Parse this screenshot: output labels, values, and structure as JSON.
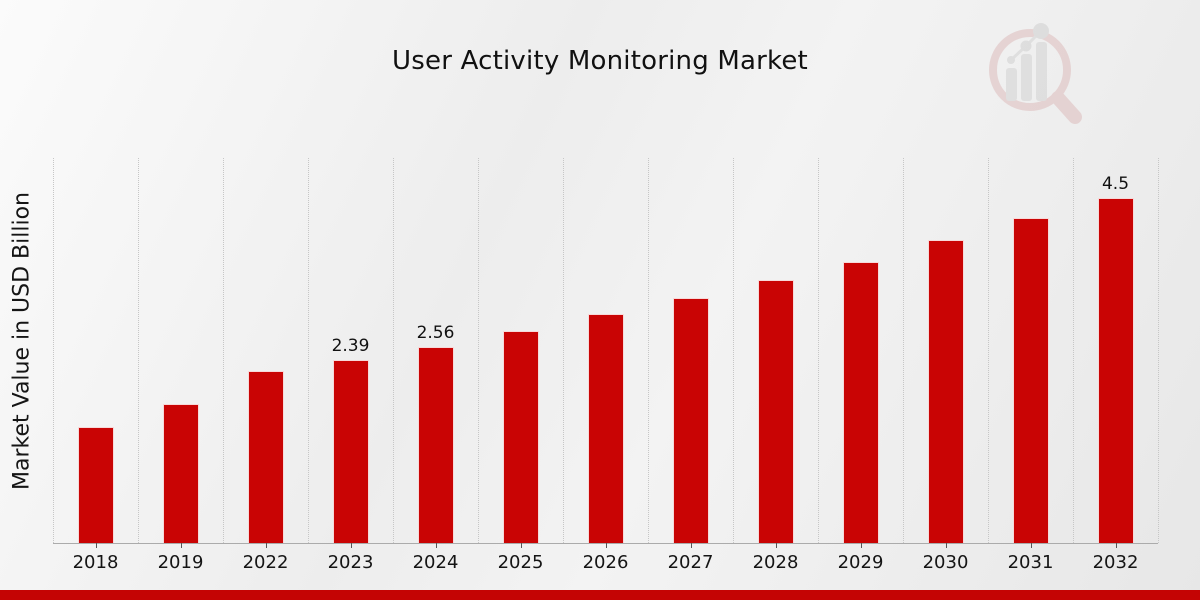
{
  "page": {
    "title": "User Activity Monitoring Market"
  },
  "watermark": {
    "icon": "magnifier-bar-chart-logo"
  },
  "chart_data": {
    "type": "bar",
    "title": "User Activity Monitoring Market",
    "xlabel": "",
    "ylabel": "Market Value in USD Billion",
    "categories": [
      "2018",
      "2019",
      "2022",
      "2023",
      "2024",
      "2025",
      "2026",
      "2027",
      "2028",
      "2029",
      "2030",
      "2031",
      "2032"
    ],
    "values": [
      1.51,
      1.81,
      2.24,
      2.39,
      2.56,
      2.76,
      2.98,
      3.19,
      3.43,
      3.67,
      3.95,
      4.24,
      4.5
    ],
    "value_labels": [
      "",
      "",
      "",
      "2.39",
      "2.56",
      "",
      "",
      "",
      "",
      "",
      "",
      "",
      "4.5"
    ],
    "ylim": [
      0,
      5.02
    ],
    "grid": "vertical-dotted-lines",
    "legend": "none",
    "y_tick_labels": "none",
    "bar_color": "#c90404",
    "accent_bar_color": "#c40404",
    "gridline_color": "#c6c6c6",
    "axis_line_color": "#ababab"
  }
}
